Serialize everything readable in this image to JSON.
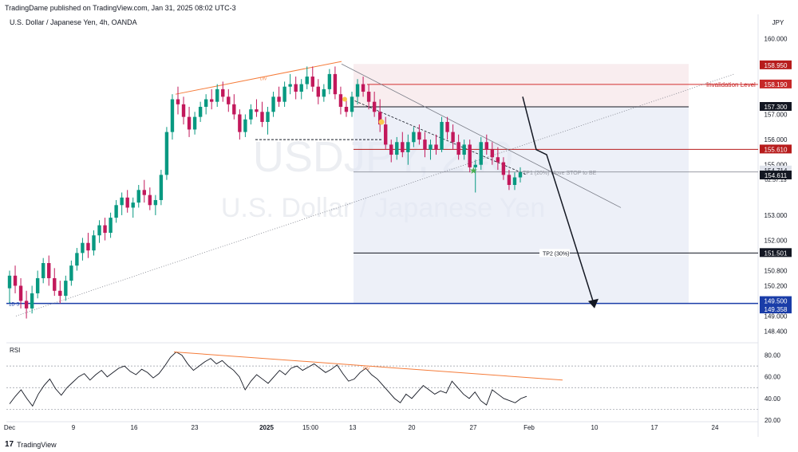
{
  "header": {
    "published": "TradingDame published on TradingView.com, Jan 31, 2025 08:02 UTC-3",
    "symbol": "U.S. Dollar / Japanese Yen, 4h, OANDA"
  },
  "footer": {
    "brand": "TradingView",
    "logo_mark": "17"
  },
  "chart_data": {
    "type": "candlestick",
    "watermark_symbol": "USDJPY, 240",
    "watermark_name": "U.S. Dollar / Japanese Yen",
    "currency": "JPY",
    "ylim": [
      148.0,
      160.4
    ],
    "y_ticks": [
      160.0,
      157.3,
      157.0,
      156.0,
      155.0,
      153.0,
      152.0,
      150.8,
      150.2,
      149.0,
      148.4
    ],
    "x_ticks": [
      "Dec",
      "9",
      "16",
      "23",
      "2025",
      "15:00",
      "13",
      "20",
      "27",
      "Feb",
      "10",
      "17",
      "24"
    ],
    "candles": [
      {
        "o": 150.1,
        "h": 150.8,
        "l": 149.5,
        "c": 150.6
      },
      {
        "o": 150.6,
        "h": 151.0,
        "l": 149.9,
        "c": 150.2
      },
      {
        "o": 150.2,
        "h": 150.5,
        "l": 149.3,
        "c": 149.6
      },
      {
        "o": 149.6,
        "h": 150.0,
        "l": 148.9,
        "c": 149.3
      },
      {
        "o": 149.3,
        "h": 150.2,
        "l": 149.1,
        "c": 149.9
      },
      {
        "o": 149.9,
        "h": 150.8,
        "l": 149.7,
        "c": 150.5
      },
      {
        "o": 150.5,
        "h": 151.3,
        "l": 150.3,
        "c": 151.1
      },
      {
        "o": 151.1,
        "h": 151.4,
        "l": 150.2,
        "c": 150.5
      },
      {
        "o": 150.5,
        "h": 150.9,
        "l": 149.8,
        "c": 150.0
      },
      {
        "o": 150.0,
        "h": 150.4,
        "l": 149.5,
        "c": 149.8
      },
      {
        "o": 149.8,
        "h": 150.6,
        "l": 149.6,
        "c": 150.4
      },
      {
        "o": 150.4,
        "h": 151.2,
        "l": 150.2,
        "c": 151.0
      },
      {
        "o": 151.0,
        "h": 151.7,
        "l": 150.8,
        "c": 151.5
      },
      {
        "o": 151.5,
        "h": 152.1,
        "l": 151.2,
        "c": 151.9
      },
      {
        "o": 151.9,
        "h": 152.3,
        "l": 151.3,
        "c": 151.6
      },
      {
        "o": 151.6,
        "h": 152.4,
        "l": 151.4,
        "c": 152.2
      },
      {
        "o": 152.2,
        "h": 152.8,
        "l": 151.9,
        "c": 152.6
      },
      {
        "o": 152.6,
        "h": 152.9,
        "l": 152.0,
        "c": 152.3
      },
      {
        "o": 152.3,
        "h": 153.1,
        "l": 152.1,
        "c": 152.9
      },
      {
        "o": 152.9,
        "h": 153.6,
        "l": 152.7,
        "c": 153.4
      },
      {
        "o": 153.4,
        "h": 153.9,
        "l": 153.0,
        "c": 153.7
      },
      {
        "o": 153.7,
        "h": 154.0,
        "l": 153.1,
        "c": 153.3
      },
      {
        "o": 153.3,
        "h": 153.7,
        "l": 152.9,
        "c": 153.5
      },
      {
        "o": 153.5,
        "h": 154.2,
        "l": 153.3,
        "c": 154.0
      },
      {
        "o": 154.0,
        "h": 154.4,
        "l": 153.5,
        "c": 153.8
      },
      {
        "o": 153.8,
        "h": 154.1,
        "l": 153.2,
        "c": 153.4
      },
      {
        "o": 153.4,
        "h": 153.8,
        "l": 153.0,
        "c": 153.6
      },
      {
        "o": 153.6,
        "h": 154.8,
        "l": 153.4,
        "c": 154.6
      },
      {
        "o": 154.6,
        "h": 156.5,
        "l": 154.4,
        "c": 156.3
      },
      {
        "o": 156.3,
        "h": 157.8,
        "l": 156.0,
        "c": 157.6
      },
      {
        "o": 157.6,
        "h": 158.1,
        "l": 157.0,
        "c": 157.4
      },
      {
        "o": 157.4,
        "h": 157.7,
        "l": 156.6,
        "c": 156.9
      },
      {
        "o": 156.9,
        "h": 157.3,
        "l": 156.1,
        "c": 156.4
      },
      {
        "o": 156.4,
        "h": 157.1,
        "l": 156.2,
        "c": 156.9
      },
      {
        "o": 156.9,
        "h": 157.5,
        "l": 156.7,
        "c": 157.3
      },
      {
        "o": 157.3,
        "h": 157.8,
        "l": 157.0,
        "c": 157.6
      },
      {
        "o": 157.6,
        "h": 158.0,
        "l": 157.2,
        "c": 157.5
      },
      {
        "o": 157.5,
        "h": 158.2,
        "l": 157.3,
        "c": 158.0
      },
      {
        "o": 158.0,
        "h": 158.3,
        "l": 157.5,
        "c": 157.7
      },
      {
        "o": 157.7,
        "h": 158.0,
        "l": 157.1,
        "c": 157.4
      },
      {
        "o": 157.4,
        "h": 157.8,
        "l": 156.8,
        "c": 157.0
      },
      {
        "o": 157.0,
        "h": 157.2,
        "l": 156.0,
        "c": 156.3
      },
      {
        "o": 156.3,
        "h": 157.0,
        "l": 156.1,
        "c": 156.8
      },
      {
        "o": 156.8,
        "h": 157.4,
        "l": 156.6,
        "c": 157.2
      },
      {
        "o": 157.2,
        "h": 157.6,
        "l": 156.9,
        "c": 157.1
      },
      {
        "o": 157.1,
        "h": 157.5,
        "l": 156.5,
        "c": 156.7
      },
      {
        "o": 156.7,
        "h": 157.3,
        "l": 156.2,
        "c": 157.1
      },
      {
        "o": 157.1,
        "h": 157.9,
        "l": 156.9,
        "c": 157.7
      },
      {
        "o": 157.7,
        "h": 158.1,
        "l": 157.3,
        "c": 157.5
      },
      {
        "o": 157.5,
        "h": 158.3,
        "l": 157.3,
        "c": 158.1
      },
      {
        "o": 158.1,
        "h": 158.6,
        "l": 157.8,
        "c": 158.2
      },
      {
        "o": 158.2,
        "h": 158.5,
        "l": 157.6,
        "c": 157.9
      },
      {
        "o": 157.9,
        "h": 158.4,
        "l": 157.6,
        "c": 158.2
      },
      {
        "o": 158.2,
        "h": 158.9,
        "l": 158.0,
        "c": 158.5
      },
      {
        "o": 158.5,
        "h": 158.9,
        "l": 157.9,
        "c": 158.1
      },
      {
        "o": 158.1,
        "h": 158.4,
        "l": 157.4,
        "c": 157.7
      },
      {
        "o": 157.7,
        "h": 158.2,
        "l": 157.5,
        "c": 158.0
      },
      {
        "o": 158.0,
        "h": 158.8,
        "l": 157.8,
        "c": 158.6
      },
      {
        "o": 158.6,
        "h": 158.9,
        "l": 157.6,
        "c": 157.8
      },
      {
        "o": 157.8,
        "h": 158.1,
        "l": 157.0,
        "c": 157.3
      },
      {
        "o": 157.3,
        "h": 157.6,
        "l": 156.9,
        "c": 157.1
      },
      {
        "o": 157.1,
        "h": 157.9,
        "l": 156.9,
        "c": 157.7
      },
      {
        "o": 157.7,
        "h": 158.4,
        "l": 157.4,
        "c": 158.2
      },
      {
        "o": 158.2,
        "h": 158.5,
        "l": 157.7,
        "c": 157.9
      },
      {
        "o": 157.9,
        "h": 158.2,
        "l": 157.2,
        "c": 157.5
      },
      {
        "o": 157.5,
        "h": 157.9,
        "l": 156.9,
        "c": 157.1
      },
      {
        "o": 157.1,
        "h": 157.6,
        "l": 156.3,
        "c": 156.6
      },
      {
        "o": 156.6,
        "h": 156.9,
        "l": 155.6,
        "c": 155.8
      },
      {
        "o": 155.8,
        "h": 156.0,
        "l": 155.1,
        "c": 155.4
      },
      {
        "o": 155.4,
        "h": 156.1,
        "l": 155.2,
        "c": 155.9
      },
      {
        "o": 155.9,
        "h": 156.3,
        "l": 155.3,
        "c": 155.5
      },
      {
        "o": 155.5,
        "h": 156.2,
        "l": 155.0,
        "c": 155.9
      },
      {
        "o": 155.9,
        "h": 156.5,
        "l": 155.7,
        "c": 156.3
      },
      {
        "o": 156.3,
        "h": 156.6,
        "l": 155.8,
        "c": 156.0
      },
      {
        "o": 156.0,
        "h": 156.3,
        "l": 155.3,
        "c": 155.6
      },
      {
        "o": 155.6,
        "h": 156.0,
        "l": 155.2,
        "c": 155.8
      },
      {
        "o": 155.8,
        "h": 156.2,
        "l": 155.4,
        "c": 155.6
      },
      {
        "o": 155.6,
        "h": 156.9,
        "l": 155.5,
        "c": 156.7
      },
      {
        "o": 156.7,
        "h": 156.9,
        "l": 156.0,
        "c": 156.3
      },
      {
        "o": 156.3,
        "h": 156.6,
        "l": 155.6,
        "c": 155.9
      },
      {
        "o": 155.9,
        "h": 156.2,
        "l": 155.2,
        "c": 155.4
      },
      {
        "o": 155.4,
        "h": 156.0,
        "l": 155.2,
        "c": 155.8
      },
      {
        "o": 155.8,
        "h": 156.0,
        "l": 154.7,
        "c": 154.9
      },
      {
        "o": 154.9,
        "h": 155.2,
        "l": 153.9,
        "c": 155.0
      },
      {
        "o": 155.0,
        "h": 156.1,
        "l": 154.8,
        "c": 155.9
      },
      {
        "o": 155.9,
        "h": 156.2,
        "l": 155.4,
        "c": 155.6
      },
      {
        "o": 155.6,
        "h": 155.9,
        "l": 155.0,
        "c": 155.3
      },
      {
        "o": 155.3,
        "h": 155.7,
        "l": 154.8,
        "c": 155.1
      },
      {
        "o": 155.1,
        "h": 155.3,
        "l": 154.4,
        "c": 154.6
      },
      {
        "o": 154.6,
        "h": 154.8,
        "l": 154.0,
        "c": 154.2
      },
      {
        "o": 154.2,
        "h": 154.7,
        "l": 154.0,
        "c": 154.5
      },
      {
        "o": 154.5,
        "h": 154.9,
        "l": 154.3,
        "c": 154.7
      }
    ],
    "levels": [
      {
        "price": 158.95,
        "label": "158.950",
        "color": "#b71c1c"
      },
      {
        "price": 158.19,
        "label": "158.190",
        "color": "#c62828",
        "note": "Invalidation Level"
      },
      {
        "price": 157.3,
        "label": "157.300",
        "color": "#131722"
      },
      {
        "price": 155.61,
        "label": "155.610",
        "color": "#b71c1c"
      },
      {
        "price": 154.714,
        "label": "154.714",
        "color": "#d1d4dc",
        "countdown": "02:57:13",
        "note": "TP1 (20%) Move STOP to BE"
      },
      {
        "price": 154.611,
        "label": "154.611",
        "color": "#131722"
      },
      {
        "price": 151.501,
        "label": "151.501",
        "color": "#131722",
        "note": "TP2 (30%)"
      },
      {
        "price": 149.5,
        "label": "149.500",
        "color": "#1a3da8"
      },
      {
        "price": 149.358,
        "label": "149.358",
        "color": "#1a3da8"
      }
    ],
    "divergence_label": "DIV",
    "left_level_label": "1D S",
    "projection": [
      157.6,
      155.4,
      149.4
    ],
    "rsi": {
      "name": "RSI",
      "ylim": [
        20,
        90
      ],
      "ticks": [
        80.0,
        60.0,
        40.0,
        20.0
      ],
      "bands": [
        70,
        50,
        30
      ],
      "values": [
        35,
        42,
        48,
        40,
        33,
        44,
        52,
        58,
        49,
        43,
        50,
        55,
        60,
        63,
        57,
        62,
        66,
        60,
        64,
        68,
        70,
        65,
        62,
        67,
        64,
        59,
        63,
        70,
        78,
        83,
        80,
        72,
        66,
        70,
        74,
        77,
        72,
        75,
        70,
        66,
        60,
        48,
        56,
        62,
        58,
        54,
        60,
        66,
        62,
        68,
        70,
        66,
        69,
        72,
        68,
        64,
        67,
        71,
        63,
        56,
        58,
        64,
        68,
        62,
        58,
        52,
        46,
        40,
        36,
        44,
        40,
        46,
        52,
        48,
        44,
        47,
        45,
        56,
        50,
        44,
        40,
        46,
        38,
        34,
        48,
        44,
        40,
        38,
        36,
        40,
        42
      ]
    }
  }
}
